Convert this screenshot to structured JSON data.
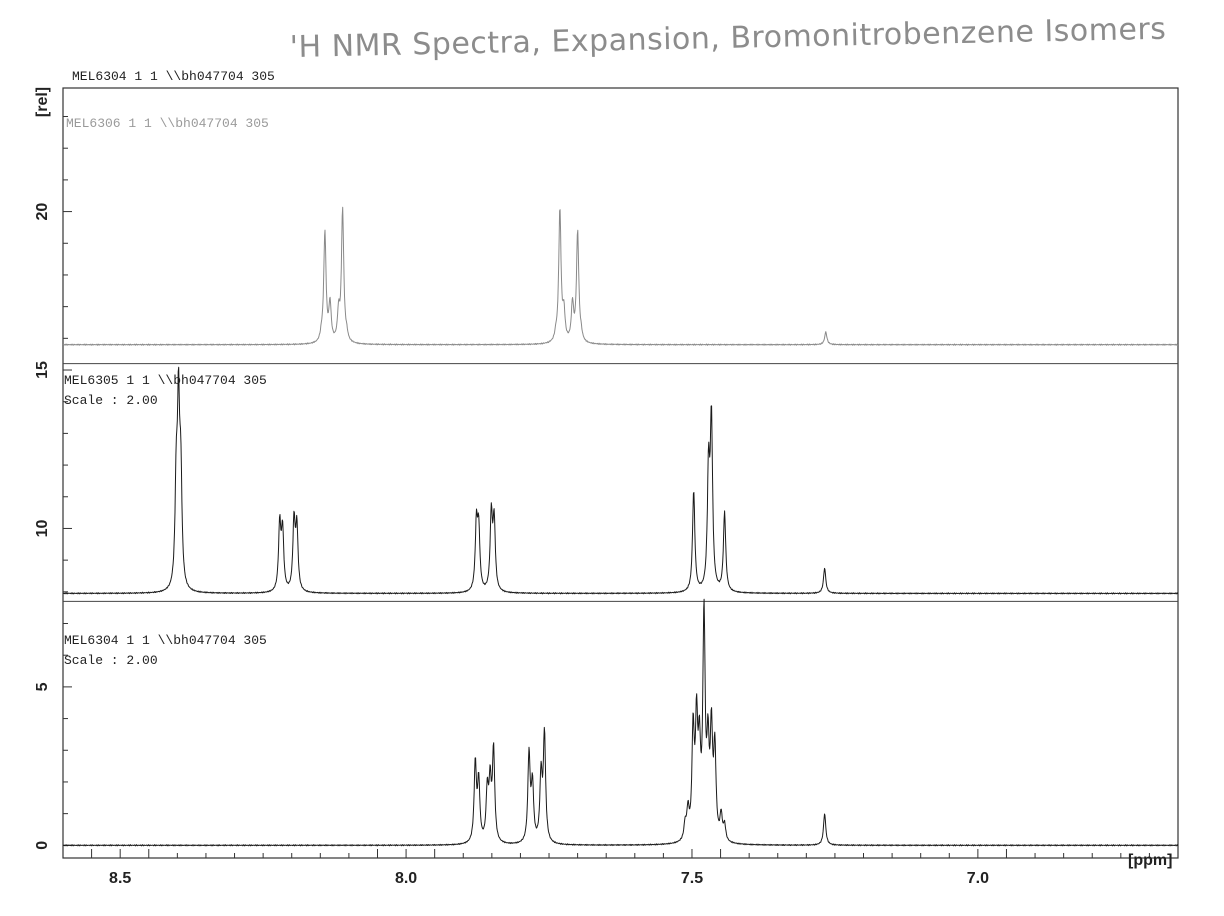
{
  "title": "'H NMR Spectra, Expansion, Bromonitrobenzene Isomers",
  "header_label": "MEL6304  1  1  \\\\bh047704  305",
  "colors": {
    "trace_top": "#8a8a8a",
    "trace_mid": "#1a1a1a",
    "trace_bottom": "#1a1a1a",
    "frame": "#333333"
  },
  "chart_data": {
    "type": "line",
    "xlabel": "[ppm]",
    "ylabel": "[rel]",
    "xlim": [
      8.6,
      6.65
    ],
    "x_reversed": true,
    "ylim": [
      -0.4,
      23.9
    ],
    "x_ticks": [
      {
        "value": 8.5,
        "label": "8.5"
      },
      {
        "value": 8.0,
        "label": "8.0"
      },
      {
        "value": 7.5,
        "label": "7.5"
      },
      {
        "value": 7.0,
        "label": "7.0"
      }
    ],
    "y_ticks": [
      {
        "value": 0,
        "label": "0"
      },
      {
        "value": 5,
        "label": "5"
      },
      {
        "value": 10,
        "label": "10"
      },
      {
        "value": 15,
        "label": "15"
      },
      {
        "value": 20,
        "label": "20"
      }
    ],
    "separator_levels": [
      7.7,
      15.2
    ],
    "series": [
      {
        "key": "top",
        "name": "MEL6306  1  1  \\\\bh047704  305",
        "scale_label": "",
        "baseline": 15.8,
        "peaks": [
          [
            8.148,
            0.2
          ],
          [
            8.142,
            3.5
          ],
          [
            8.133,
            1.2
          ],
          [
            8.118,
            0.9
          ],
          [
            8.111,
            4.2
          ],
          [
            8.104,
            0.2
          ],
          [
            7.738,
            0.2
          ],
          [
            7.731,
            4.2
          ],
          [
            7.724,
            0.9
          ],
          [
            7.709,
            1.2
          ],
          [
            7.7,
            3.5
          ],
          [
            7.694,
            0.2
          ],
          [
            7.266,
            0.4
          ]
        ]
      },
      {
        "key": "mid",
        "name": "MEL6305  1  1  \\\\bh047704  305",
        "scale_label": "Scale : 2.00",
        "baseline": 7.95,
        "peaks": [
          [
            8.402,
            3.1
          ],
          [
            8.398,
            5.5
          ],
          [
            8.394,
            3.3
          ],
          [
            8.221,
            2.1
          ],
          [
            8.216,
            1.9
          ],
          [
            8.196,
            2.2
          ],
          [
            8.191,
            2.0
          ],
          [
            7.877,
            2.1
          ],
          [
            7.873,
            1.9
          ],
          [
            7.851,
            2.4
          ],
          [
            7.846,
            2.2
          ],
          [
            7.497,
            3.2
          ],
          [
            7.471,
            3.7
          ],
          [
            7.466,
            5.3
          ],
          [
            7.443,
            2.5
          ],
          [
            7.268,
            0.8
          ]
        ]
      },
      {
        "key": "bottom",
        "name": "MEL6304  1  1  \\\\bh047704  305",
        "scale_label": "Scale : 2.00",
        "baseline": 0.0,
        "peaks": [
          [
            7.879,
            2.5
          ],
          [
            7.873,
            1.9
          ],
          [
            7.858,
            1.6
          ],
          [
            7.853,
            1.8
          ],
          [
            7.847,
            2.9
          ],
          [
            7.785,
            2.8
          ],
          [
            7.779,
            1.8
          ],
          [
            7.764,
            2.1
          ],
          [
            7.758,
            3.4
          ],
          [
            7.512,
            0.5
          ],
          [
            7.507,
            0.9
          ],
          [
            7.498,
            3.4
          ],
          [
            7.492,
            3.5
          ],
          [
            7.487,
            2.6
          ],
          [
            7.479,
            7.0
          ],
          [
            7.472,
            2.7
          ],
          [
            7.466,
            3.3
          ],
          [
            7.46,
            2.8
          ],
          [
            7.449,
            0.8
          ],
          [
            7.443,
            0.5
          ],
          [
            7.268,
            1.0
          ]
        ]
      }
    ]
  }
}
